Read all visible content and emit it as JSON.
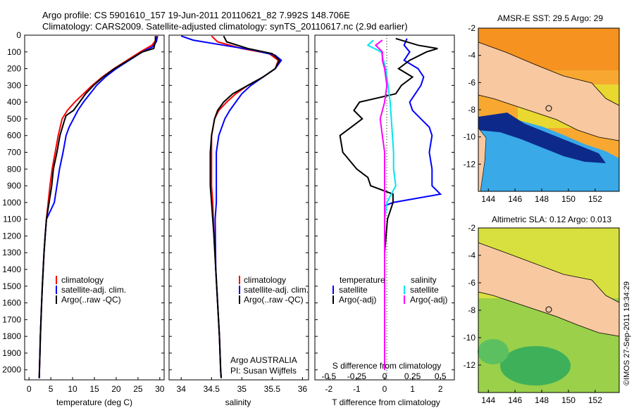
{
  "header": {
    "line1": "Argo profile: CS 5901610_157 19-Jun-2011 20110621_82 7.992S 148.706E",
    "line2": "Climatology: CARS2009. Satellite-adjusted climatology: synTS_20110617.nc (2.9d earlier)"
  },
  "colors": {
    "climatology": "#ff0000",
    "satellite": "#0000ff",
    "argo": "#000000",
    "satellite_salinity": "#00e5ee",
    "argo_salinity": "#ff00ff",
    "land": "#f8c8a0",
    "frame": "#000000"
  },
  "depth_axis": {
    "range": [
      0,
      2060
    ],
    "ticks": [
      "0",
      "100",
      "200",
      "300",
      "400",
      "500",
      "600",
      "700",
      "800",
      "900",
      "1000",
      "1100",
      "1200",
      "1300",
      "1400",
      "1500",
      "1600",
      "1700",
      "1800",
      "1900",
      "2000"
    ]
  },
  "temperature_panel": {
    "xlabel": "temperature (deg C)",
    "xticks": [
      "0",
      "5",
      "10",
      "15",
      "20",
      "25",
      "30"
    ],
    "legend": [
      "climatology",
      "satellite-adj. clim.",
      "Argo(..raw -QC)"
    ]
  },
  "salinity_panel": {
    "xlabel": "salinity",
    "xticks": [
      "34",
      "34.5",
      "35",
      "35.5",
      "36"
    ],
    "legend": [
      "climatology",
      "satellite-adj. clim.",
      "Argo(..raw -QC)"
    ],
    "credit_line1": "Argo AUSTRALIA",
    "credit_line2": "PI: Susan Wijffels"
  },
  "difference_panel": {
    "temp_legend_title": "temperature",
    "sal_legend_title": "salinity",
    "temp_legend": [
      "satellite",
      "Argo(-adj)"
    ],
    "sal_legend": [
      "satellite",
      "Argo(-adj)"
    ],
    "s_label": "S difference from climatology",
    "s_ticks": [
      "-0.5",
      "-0.25",
      "0",
      "0.25",
      "0.5"
    ],
    "t_label": "T difference from climatology",
    "t_ticks": [
      "-2",
      "-1",
      "0",
      "1",
      "2"
    ]
  },
  "map_sst": {
    "title": "AMSR-E SST: 29.5 Argo: 29",
    "xticks": [
      "144",
      "146",
      "148",
      "150",
      "152"
    ],
    "yticks": [
      "-2",
      "-4",
      "-6",
      "-8",
      "-10",
      "-12"
    ]
  },
  "map_sla": {
    "title": "Altimetric SLA: 0.12 Argo: 0.013",
    "xticks": [
      "144",
      "146",
      "148",
      "150",
      "152"
    ],
    "yticks": [
      "-2",
      "-4",
      "-6",
      "-8",
      "-10",
      "-12"
    ]
  },
  "side_stamp": "©IMOS 27-Sep-2011 19:34:29",
  "chart_data": [
    {
      "type": "line",
      "panel": "temperature",
      "ylim": [
        0,
        2060
      ],
      "xlim": [
        -1,
        31
      ],
      "series": [
        {
          "name": "climatology",
          "points": [
            [
              29.3,
              5
            ],
            [
              29.1,
              30
            ],
            [
              28.2,
              60
            ],
            [
              25.5,
              100
            ],
            [
              22.5,
              150
            ],
            [
              19.5,
              200
            ],
            [
              16.8,
              250
            ],
            [
              14.5,
              300
            ],
            [
              12.5,
              350
            ],
            [
              10.5,
              400
            ],
            [
              8.8,
              450
            ],
            [
              7.6,
              500
            ],
            [
              6.7,
              600
            ],
            [
              6.0,
              700
            ],
            [
              5.3,
              800
            ],
            [
              4.8,
              900
            ],
            [
              4.4,
              1000
            ],
            [
              4.0,
              1100
            ],
            [
              3.7,
              1200
            ],
            [
              3.45,
              1300
            ],
            [
              3.25,
              1400
            ],
            [
              3.05,
              1500
            ],
            [
              2.9,
              1600
            ],
            [
              2.75,
              1700
            ],
            [
              2.6,
              1800
            ],
            [
              2.5,
              1900
            ],
            [
              2.4,
              2000
            ],
            [
              2.35,
              2050
            ]
          ]
        },
        {
          "name": "satellite-adj. clim.",
          "points": [
            [
              29.5,
              5
            ],
            [
              29.2,
              40
            ],
            [
              28.3,
              70
            ],
            [
              26.0,
              100
            ],
            [
              23.0,
              150
            ],
            [
              20.0,
              200
            ],
            [
              17.5,
              250
            ],
            [
              15.5,
              300
            ],
            [
              14.0,
              350
            ],
            [
              12.5,
              400
            ],
            [
              11.2,
              450
            ],
            [
              10.2,
              500
            ],
            [
              9.2,
              550
            ],
            [
              8.5,
              600
            ],
            [
              7.8,
              700
            ],
            [
              7.0,
              800
            ],
            [
              6.4,
              900
            ],
            [
              5.8,
              1000
            ],
            [
              4.0,
              1100
            ],
            [
              3.7,
              1200
            ],
            [
              3.45,
              1300
            ],
            [
              3.25,
              1400
            ],
            [
              3.05,
              1500
            ],
            [
              2.9,
              1600
            ],
            [
              2.75,
              1700
            ],
            [
              2.6,
              1800
            ],
            [
              2.5,
              1900
            ],
            [
              2.4,
              2000
            ],
            [
              2.35,
              2050
            ]
          ]
        },
        {
          "name": "Argo(..raw -QC)",
          "points": [
            [
              29.0,
              5
            ],
            [
              29.0,
              40
            ],
            [
              28.6,
              80
            ],
            [
              26.0,
              100
            ],
            [
              22.8,
              150
            ],
            [
              19.6,
              200
            ],
            [
              17.0,
              250
            ],
            [
              14.8,
              300
            ],
            [
              13.0,
              350
            ],
            [
              11.6,
              400
            ],
            [
              10.2,
              450
            ],
            [
              8.5,
              480
            ],
            [
              8.0,
              520
            ],
            [
              7.1,
              600
            ],
            [
              6.4,
              700
            ],
            [
              5.6,
              800
            ],
            [
              5.2,
              900
            ],
            [
              4.6,
              1000
            ],
            [
              4.3,
              1050
            ],
            [
              4.0,
              1100
            ],
            [
              3.7,
              1200
            ],
            [
              3.45,
              1300
            ],
            [
              3.25,
              1400
            ],
            [
              3.05,
              1500
            ],
            [
              2.9,
              1600
            ],
            [
              2.75,
              1700
            ],
            [
              2.6,
              1800
            ],
            [
              2.5,
              1900
            ],
            [
              2.4,
              2000
            ],
            [
              2.35,
              2050
            ]
          ]
        }
      ]
    },
    {
      "type": "line",
      "panel": "salinity",
      "ylim": [
        0,
        2060
      ],
      "xlim": [
        33.8,
        36.1
      ],
      "series": [
        {
          "name": "climatology",
          "points": [
            [
              34.5,
              5
            ],
            [
              34.6,
              40
            ],
            [
              35.0,
              80
            ],
            [
              35.45,
              110
            ],
            [
              35.6,
              150
            ],
            [
              35.55,
              200
            ],
            [
              35.35,
              250
            ],
            [
              35.1,
              300
            ],
            [
              34.9,
              350
            ],
            [
              34.75,
              400
            ],
            [
              34.62,
              450
            ],
            [
              34.55,
              500
            ],
            [
              34.5,
              600
            ],
            [
              34.5,
              700
            ],
            [
              34.5,
              800
            ],
            [
              34.5,
              900
            ],
            [
              34.52,
              1000
            ],
            [
              34.54,
              1200
            ],
            [
              34.57,
              1400
            ],
            [
              34.6,
              1600
            ],
            [
              34.63,
              1800
            ],
            [
              34.65,
              2000
            ],
            [
              34.66,
              2050
            ]
          ]
        },
        {
          "name": "satellite-adj. clim.",
          "points": [
            [
              34.0,
              5
            ],
            [
              34.2,
              30
            ],
            [
              34.7,
              60
            ],
            [
              35.2,
              90
            ],
            [
              35.55,
              120
            ],
            [
              35.65,
              150
            ],
            [
              35.55,
              200
            ],
            [
              35.35,
              250
            ],
            [
              35.15,
              300
            ],
            [
              35.0,
              350
            ],
            [
              34.9,
              400
            ],
            [
              34.8,
              450
            ],
            [
              34.72,
              500
            ],
            [
              34.62,
              600
            ],
            [
              34.58,
              700
            ],
            [
              34.58,
              800
            ],
            [
              34.58,
              900
            ],
            [
              34.58,
              1000
            ],
            [
              34.56,
              1100
            ],
            [
              34.57,
              1400
            ],
            [
              34.6,
              1600
            ],
            [
              34.63,
              1800
            ],
            [
              34.65,
              2000
            ],
            [
              34.66,
              2050
            ]
          ]
        },
        {
          "name": "Argo(..raw -QC)",
          "points": [
            [
              34.7,
              5
            ],
            [
              34.75,
              40
            ],
            [
              35.1,
              80
            ],
            [
              35.5,
              110
            ],
            [
              35.62,
              150
            ],
            [
              35.55,
              200
            ],
            [
              35.35,
              250
            ],
            [
              35.1,
              300
            ],
            [
              34.85,
              350
            ],
            [
              34.7,
              400
            ],
            [
              34.6,
              450
            ],
            [
              34.55,
              500
            ],
            [
              34.5,
              600
            ],
            [
              34.48,
              700
            ],
            [
              34.48,
              800
            ],
            [
              34.48,
              900
            ],
            [
              34.5,
              1000
            ],
            [
              34.54,
              1200
            ],
            [
              34.57,
              1400
            ],
            [
              34.6,
              1600
            ],
            [
              34.63,
              1800
            ],
            [
              34.65,
              2000
            ],
            [
              34.66,
              2050
            ]
          ]
        }
      ]
    },
    {
      "type": "line",
      "panel": "T and S difference from climatology",
      "ylim": [
        0,
        2060
      ],
      "xlim_T": [
        -2.5,
        2.5
      ],
      "xlim_S": [
        -0.625,
        0.625
      ],
      "series": [
        {
          "name": "temperature satellite",
          "axis": "T",
          "points": [
            [
              0.8,
              20
            ],
            [
              0.7,
              60
            ],
            [
              0.9,
              100
            ],
            [
              0.7,
              150
            ],
            [
              1.2,
              200
            ],
            [
              1.4,
              250
            ],
            [
              1.3,
              300
            ],
            [
              0.9,
              400
            ],
            [
              1.0,
              450
            ],
            [
              1.3,
              500
            ],
            [
              1.6,
              550
            ],
            [
              1.7,
              600
            ],
            [
              1.6,
              700
            ],
            [
              1.7,
              800
            ],
            [
              1.7,
              900
            ],
            [
              2.0,
              950
            ],
            [
              0.3,
              1000
            ],
            [
              0.0,
              1020
            ],
            [
              0.0,
              1100
            ],
            [
              0.0,
              1300
            ],
            [
              0.0,
              1600
            ],
            [
              0.0,
              2000
            ]
          ]
        },
        {
          "name": "temperature Argo(-adj)",
          "axis": "T",
          "points": [
            [
              0.4,
              20
            ],
            [
              1.2,
              60
            ],
            [
              1.9,
              80
            ],
            [
              1.5,
              100
            ],
            [
              0.9,
              150
            ],
            [
              0.5,
              200
            ],
            [
              1.0,
              250
            ],
            [
              0.6,
              300
            ],
            [
              0.4,
              350
            ],
            [
              -0.9,
              400
            ],
            [
              -1.1,
              450
            ],
            [
              -0.8,
              500
            ],
            [
              -1.2,
              550
            ],
            [
              -1.6,
              600
            ],
            [
              -1.5,
              700
            ],
            [
              -1.0,
              800
            ],
            [
              -0.6,
              850
            ],
            [
              -0.5,
              900
            ],
            [
              0.3,
              950
            ],
            [
              0.3,
              1000
            ],
            [
              0.1,
              1100
            ],
            [
              0.0,
              1300
            ],
            [
              0.0,
              1600
            ],
            [
              0.0,
              2000
            ]
          ]
        },
        {
          "name": "salinity satellite",
          "axis": "S",
          "points": [
            [
              -0.1,
              30
            ],
            [
              -0.15,
              60
            ],
            [
              -0.03,
              100
            ],
            [
              0.01,
              200
            ],
            [
              0.03,
              300
            ],
            [
              0.05,
              400
            ],
            [
              0.06,
              500
            ],
            [
              0.07,
              600
            ],
            [
              0.08,
              700
            ],
            [
              0.08,
              800
            ],
            [
              0.1,
              900
            ],
            [
              0.02,
              1000
            ],
            [
              0.0,
              1100
            ],
            [
              0.0,
              1500
            ],
            [
              0.0,
              2000
            ]
          ]
        },
        {
          "name": "salinity Argo(-adj)",
          "axis": "S",
          "points": [
            [
              -0.02,
              30
            ],
            [
              -0.08,
              60
            ],
            [
              -0.02,
              100
            ],
            [
              -0.02,
              150
            ],
            [
              0.0,
              200
            ],
            [
              0.02,
              300
            ],
            [
              0.0,
              400
            ],
            [
              -0.04,
              500
            ],
            [
              -0.02,
              600
            ],
            [
              0.0,
              700
            ],
            [
              0.0,
              800
            ],
            [
              0.0,
              900
            ],
            [
              0.0,
              1000
            ],
            [
              0.0,
              1500
            ],
            [
              0.0,
              2000
            ]
          ]
        }
      ]
    }
  ]
}
